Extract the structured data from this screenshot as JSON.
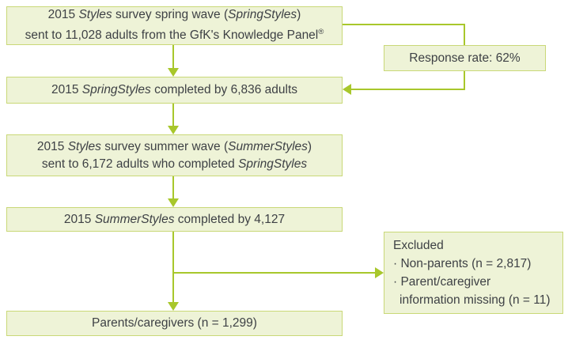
{
  "colors": {
    "background": "#ffffff",
    "box_fill": "#eef3d7",
    "box_border": "#c9d877",
    "connector": "#a8c72b",
    "text": "#3e4145"
  },
  "flowchart": {
    "box_spring_sent": {
      "lines": [
        {
          "runs": [
            {
              "t": "2015 "
            },
            {
              "t": "Styles",
              "i": true
            },
            {
              "t": " survey spring wave ("
            },
            {
              "t": "SpringStyles",
              "i": true
            },
            {
              "t": ")"
            }
          ]
        },
        {
          "runs": [
            {
              "t": "sent to 11,028 adults from the GfK's Knowledge Panel"
            },
            {
              "t": "®",
              "sup": true
            }
          ]
        }
      ]
    },
    "box_response_rate": {
      "lines": [
        {
          "runs": [
            {
              "t": "Response rate: 62%"
            }
          ]
        }
      ]
    },
    "box_spring_completed": {
      "lines": [
        {
          "runs": [
            {
              "t": "2015 "
            },
            {
              "t": "SpringStyles",
              "i": true
            },
            {
              "t": " completed by 6,836 adults"
            }
          ]
        }
      ]
    },
    "box_summer_sent": {
      "lines": [
        {
          "runs": [
            {
              "t": "2015 "
            },
            {
              "t": "Styles",
              "i": true
            },
            {
              "t": " survey summer wave ("
            },
            {
              "t": "SummerStyles",
              "i": true
            },
            {
              "t": ")"
            }
          ]
        },
        {
          "runs": [
            {
              "t": "sent to 6,172 adults who completed "
            },
            {
              "t": "SpringStyles",
              "i": true
            }
          ]
        }
      ]
    },
    "box_summer_completed": {
      "lines": [
        {
          "runs": [
            {
              "t": "2015 "
            },
            {
              "t": "SummerStyles",
              "i": true
            },
            {
              "t": " completed by 4,127"
            }
          ]
        }
      ]
    },
    "box_excluded": {
      "lines": [
        {
          "runs": [
            {
              "t": "Excluded"
            }
          ]
        },
        {
          "runs": [
            {
              "t": "· Non-parents (n = 2,817)"
            }
          ]
        },
        {
          "runs": [
            {
              "t": "· Parent/caregiver"
            }
          ]
        },
        {
          "runs": [
            {
              "t": "information missing (n = 11)"
            }
          ],
          "indent": true
        }
      ]
    },
    "box_parents": {
      "lines": [
        {
          "runs": [
            {
              "t": "Parents/caregivers (n = 1,299)"
            }
          ]
        }
      ]
    }
  }
}
